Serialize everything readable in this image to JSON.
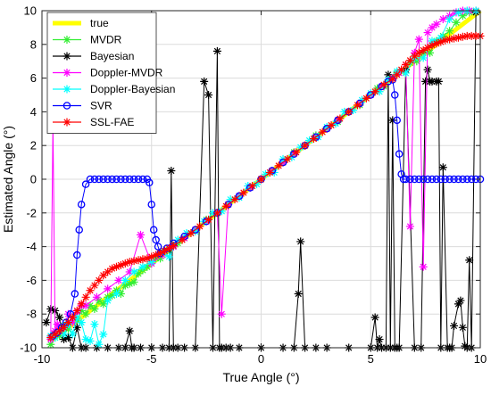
{
  "chart_data": {
    "type": "line",
    "xlabel": "True Angle (°)",
    "ylabel": "Estimated Angle (°)",
    "xlim": [
      -10,
      10
    ],
    "ylim": [
      -10,
      10
    ],
    "xticks": [
      -10,
      -5,
      0,
      5,
      10
    ],
    "yticks": [
      -10,
      -8,
      -6,
      -4,
      -2,
      0,
      2,
      4,
      6,
      8,
      10
    ],
    "xtick_labels": [
      "-10",
      "-5",
      "0",
      "5",
      "10"
    ],
    "ytick_labels": [
      "-10",
      "-8",
      "-6",
      "-4",
      "-2",
      "0",
      "2",
      "4",
      "6",
      "8",
      "10"
    ],
    "grid": true,
    "legend_position": "top-left",
    "series": [
      {
        "name": "true",
        "color": "#ffff00",
        "marker": "none",
        "x": [
          -9.5,
          10
        ],
        "y": [
          -9.5,
          10
        ]
      },
      {
        "name": "MVDR",
        "color": "#33ee33",
        "marker": "asterisk",
        "x": [
          -9.6,
          -9.4,
          -9.2,
          -9.0,
          -8.8,
          -8.6,
          -8.4,
          -8.2,
          -8.0,
          -7.8,
          -7.6,
          -7.4,
          -7.2,
          -7.0,
          -6.8,
          -6.6,
          -6.4,
          -6.2,
          -6.0,
          -5.8,
          -5.6,
          -5.4,
          -5.2,
          -5.0,
          -4.8,
          -4.6,
          -4.4,
          -4.2,
          -4.0,
          -3.8,
          -3.5,
          -3.0,
          -2.5,
          -2.0,
          -1.5,
          -1.0,
          -0.5,
          0.0,
          0.5,
          1.0,
          1.5,
          2.0,
          2.5,
          3.0,
          3.5,
          4.0,
          4.5,
          5.0,
          5.3,
          5.6,
          5.9,
          6.2,
          6.5,
          6.8,
          7.1,
          7.4,
          7.7,
          8.0,
          8.3,
          8.6,
          8.9,
          9.2,
          9.5,
          9.8
        ],
        "y": [
          -9.8,
          -9.4,
          -9.3,
          -8.7,
          -8.9,
          -8.2,
          -8.4,
          -7.8,
          -8.0,
          -7.5,
          -7.7,
          -7.2,
          -7.4,
          -7.0,
          -6.9,
          -6.6,
          -6.8,
          -6.3,
          -6.2,
          -6.1,
          -5.6,
          -5.4,
          -5.2,
          -5.0,
          -4.7,
          -4.7,
          -4.3,
          -4.2,
          -4.0,
          -3.8,
          -3.5,
          -3.0,
          -2.4,
          -2.0,
          -1.5,
          -1.0,
          -0.5,
          0.0,
          0.5,
          1.0,
          1.6,
          2.0,
          2.6,
          3.0,
          3.4,
          4.0,
          4.4,
          5.0,
          5.4,
          5.5,
          6.0,
          6.3,
          6.4,
          6.9,
          7.0,
          7.5,
          7.5,
          8.2,
          8.5,
          8.8,
          9.3,
          9.7,
          9.9,
          10.0
        ]
      },
      {
        "name": "Bayesian",
        "color": "#000000",
        "marker": "asterisk",
        "x": [
          -9.8,
          -9.6,
          -9.4,
          -9.2,
          -9.0,
          -8.8,
          -8.6,
          -8.4,
          -8.2,
          -8.0,
          -7.5,
          -7.0,
          -6.5,
          -6.2,
          -6.0,
          -5.9,
          -5.8,
          -5.5,
          -5.0,
          -4.5,
          -4.2,
          -4.1,
          -4.0,
          -3.8,
          -3.5,
          -3.0,
          -2.6,
          -2.4,
          -2.2,
          -2.0,
          -1.9,
          -1.8,
          -1.6,
          -1.4,
          -1.0,
          0.0,
          1.0,
          1.5,
          1.7,
          1.8,
          2.0,
          2.5,
          3.0,
          4.0,
          5.0,
          5.2,
          5.3,
          5.4,
          5.5,
          5.7,
          5.8,
          5.9,
          6.0,
          6.1,
          6.2,
          6.3,
          6.6,
          7.0,
          7.3,
          7.5,
          7.6,
          7.7,
          7.8,
          8.0,
          8.1,
          8.2,
          8.3,
          8.5,
          8.6,
          8.7,
          8.8,
          9.0,
          9.1,
          9.2,
          9.3,
          9.4,
          9.5,
          9.6,
          9.8
        ],
        "y": [
          -8.5,
          -7.7,
          -7.8,
          -8.2,
          -9.5,
          -9.4,
          -10.0,
          -8.8,
          -10.0,
          -10.0,
          -10.0,
          -10.0,
          -10.0,
          -10.0,
          -9.0,
          -10.0,
          -10.0,
          -10.0,
          -10.0,
          -10.0,
          -10.0,
          0.5,
          -10.0,
          -10.0,
          -10.0,
          -10.0,
          5.8,
          5.0,
          -10.0,
          7.6,
          -10.0,
          -10.0,
          -10.0,
          -10.0,
          -10.0,
          -10.0,
          -10.0,
          -10.0,
          -6.8,
          -3.7,
          -10.0,
          -10.0,
          -10.0,
          -10.0,
          -10.0,
          -8.2,
          -10.0,
          -9.5,
          -10.0,
          -10.0,
          6.2,
          -10.0,
          3.5,
          -10.0,
          -10.0,
          -10.0,
          6.5,
          -10.0,
          -10.0,
          5.8,
          6.5,
          5.8,
          5.8,
          5.8,
          5.8,
          -10.0,
          0.7,
          -10.0,
          -10.0,
          -10.0,
          -8.7,
          -7.4,
          -7.2,
          -8.8,
          -9.9,
          -10.0,
          -4.8,
          -10.0,
          9.9
        ]
      },
      {
        "name": "Doppler-MVDR",
        "color": "#ff00ff",
        "marker": "asterisk",
        "x": [
          -9.6,
          -9.5,
          -9.4,
          -9.3,
          -9.2,
          -9.0,
          -8.8,
          -8.6,
          -8.4,
          -8.2,
          -8.0,
          -7.5,
          -7.0,
          -6.5,
          -6.0,
          -5.5,
          -5.0,
          -4.5,
          -4.0,
          -3.5,
          -3.0,
          -2.5,
          -2.0,
          -1.8,
          -1.5,
          -1.0,
          -0.5,
          0.0,
          0.5,
          1.0,
          1.5,
          2.0,
          2.5,
          3.0,
          3.5,
          4.0,
          4.5,
          5.0,
          5.5,
          6.0,
          6.3,
          6.6,
          6.8,
          7.0,
          7.2,
          7.4,
          7.6,
          7.8,
          8.0,
          8.3,
          8.6,
          8.9,
          9.2,
          9.5,
          9.8
        ],
        "y": [
          -9.5,
          3.3,
          -9.0,
          -8.6,
          -9.0,
          -8.8,
          -8.0,
          -8.5,
          -7.9,
          -7.5,
          -7.5,
          -7.0,
          -6.5,
          -6.0,
          -5.5,
          -3.3,
          -5.0,
          -4.5,
          -4.0,
          -3.5,
          -3.0,
          -2.5,
          -2.0,
          -8.0,
          -1.5,
          -1.0,
          -0.5,
          0.0,
          0.5,
          1.0,
          1.5,
          2.0,
          2.5,
          3.0,
          3.5,
          4.0,
          4.5,
          5.0,
          5.5,
          6.0,
          6.3,
          6.8,
          -2.8,
          7.5,
          8.3,
          -5.2,
          8.7,
          9.0,
          9.2,
          9.5,
          9.7,
          9.9,
          10.0,
          10.0,
          10.0
        ]
      },
      {
        "name": "Doppler-Bayesian",
        "color": "#00ffff",
        "marker": "asterisk",
        "x": [
          -9.6,
          -9.4,
          -9.2,
          -9.0,
          -8.8,
          -8.6,
          -8.4,
          -8.2,
          -8.0,
          -7.8,
          -7.6,
          -7.4,
          -7.2,
          -7.0,
          -6.6,
          -6.2,
          -5.8,
          -5.4,
          -5.0,
          -4.6,
          -4.2,
          -3.8,
          -3.4,
          -3.0,
          -2.6,
          -2.2,
          -1.8,
          -1.4,
          -1.0,
          -0.6,
          -0.2,
          0.2,
          0.6,
          1.0,
          1.4,
          1.8,
          2.2,
          2.6,
          3.0,
          3.4,
          3.8,
          4.2,
          4.6,
          5.0,
          5.4,
          5.8,
          6.2,
          6.6,
          7.0,
          7.4,
          7.8,
          8.2,
          8.6,
          9.0,
          9.4,
          9.8
        ],
        "y": [
          -9.3,
          -9.4,
          -9.0,
          -9.2,
          -8.6,
          -9.2,
          -8.2,
          -8.5,
          -9.5,
          -9.6,
          -8.6,
          -9.8,
          -9.2,
          -7.2,
          -6.8,
          -6.0,
          -5.5,
          -5.2,
          -4.9,
          -4.4,
          -4.6,
          -3.6,
          -3.2,
          -3.1,
          -2.5,
          -2.0,
          -1.9,
          -1.2,
          -1.1,
          -0.4,
          -0.3,
          0.3,
          0.4,
          1.2,
          1.3,
          1.9,
          2.3,
          2.5,
          3.1,
          3.3,
          4.0,
          4.1,
          4.7,
          5.1,
          5.2,
          5.9,
          6.4,
          6.3,
          7.2,
          7.2,
          8.2,
          8.4,
          9.5,
          9.9,
          10.0,
          10.0
        ]
      },
      {
        "name": "SVR",
        "color": "#0000ff",
        "marker": "circle",
        "x": [
          -9.5,
          -9.3,
          -9.1,
          -8.9,
          -8.7,
          -8.5,
          -8.4,
          -8.3,
          -8.2,
          -8.0,
          -7.8,
          -7.6,
          -7.4,
          -7.2,
          -7.0,
          -6.8,
          -6.6,
          -6.4,
          -6.2,
          -6.0,
          -5.8,
          -5.6,
          -5.4,
          -5.2,
          -5.1,
          -5.0,
          -4.9,
          -4.8,
          -4.7,
          -4.6,
          -4.3,
          -4.0,
          -3.5,
          -3.0,
          -2.5,
          -2.0,
          -1.5,
          -1.0,
          -0.5,
          0.0,
          0.5,
          1.0,
          1.5,
          2.0,
          2.5,
          3.0,
          3.5,
          4.0,
          4.5,
          5.0,
          5.5,
          5.8,
          6.0,
          6.1,
          6.2,
          6.3,
          6.4,
          6.5,
          6.6,
          6.8,
          7.0,
          7.2,
          7.4,
          7.6,
          7.8,
          8.0,
          8.2,
          8.4,
          8.6,
          8.8,
          9.0,
          9.2,
          9.4,
          9.6,
          9.8,
          10.0
        ],
        "y": [
          -9.3,
          -9.1,
          -8.8,
          -8.5,
          -8.0,
          -6.8,
          -4.5,
          -3.0,
          -1.5,
          -0.3,
          0.0,
          0.0,
          0.0,
          0.0,
          0.0,
          0.0,
          0.0,
          0.0,
          0.0,
          0.0,
          0.0,
          0.0,
          0.0,
          0.0,
          -0.2,
          -1.5,
          -3.0,
          -3.6,
          -4.0,
          -4.4,
          -4.1,
          -3.8,
          -3.4,
          -3.0,
          -2.5,
          -2.0,
          -1.5,
          -1.0,
          -0.5,
          0.0,
          0.5,
          1.0,
          1.5,
          2.0,
          2.5,
          3.0,
          3.5,
          4.0,
          4.5,
          5.0,
          5.5,
          5.8,
          5.9,
          5.0,
          3.5,
          1.5,
          0.3,
          0.0,
          0.0,
          0.0,
          0.0,
          0.0,
          0.0,
          0.0,
          0.0,
          0.0,
          0.0,
          0.0,
          0.0,
          0.0,
          0.0,
          0.0,
          0.0,
          0.0,
          0.0,
          0.0
        ]
      },
      {
        "name": "SSL-FAE",
        "color": "#ff0000",
        "marker": "asterisk",
        "x": [
          -9.6,
          -9.4,
          -9.2,
          -9.0,
          -8.8,
          -8.6,
          -8.4,
          -8.2,
          -8.0,
          -7.8,
          -7.6,
          -7.4,
          -7.2,
          -7.0,
          -6.8,
          -6.6,
          -6.4,
          -6.2,
          -6.0,
          -5.8,
          -5.6,
          -5.4,
          -5.2,
          -5.0,
          -4.8,
          -4.6,
          -4.4,
          -4.2,
          -4.0,
          -3.6,
          -3.2,
          -2.8,
          -2.4,
          -2.0,
          -1.6,
          -1.2,
          -0.8,
          -0.4,
          0.0,
          0.4,
          0.8,
          1.2,
          1.6,
          2.0,
          2.4,
          2.8,
          3.2,
          3.6,
          4.0,
          4.4,
          4.8,
          5.2,
          5.6,
          6.0,
          6.2,
          6.4,
          6.6,
          6.8,
          7.0,
          7.2,
          7.4,
          7.6,
          7.8,
          8.0,
          8.2,
          8.4,
          8.6,
          8.8,
          9.0,
          9.2,
          9.4,
          9.6,
          9.8,
          10.0
        ],
        "y": [
          -9.4,
          -9.2,
          -9.0,
          -8.8,
          -8.5,
          -8.2,
          -7.8,
          -7.4,
          -7.0,
          -6.6,
          -6.3,
          -6.0,
          -5.7,
          -5.5,
          -5.3,
          -5.2,
          -5.1,
          -5.0,
          -4.9,
          -4.85,
          -4.8,
          -4.75,
          -4.7,
          -4.6,
          -4.5,
          -4.4,
          -4.25,
          -4.1,
          -3.95,
          -3.6,
          -3.2,
          -2.8,
          -2.4,
          -2.0,
          -1.6,
          -1.2,
          -0.8,
          -0.4,
          0.0,
          0.4,
          0.8,
          1.2,
          1.6,
          2.0,
          2.4,
          2.8,
          3.2,
          3.6,
          4.0,
          4.4,
          4.8,
          5.2,
          5.6,
          5.95,
          6.2,
          6.5,
          6.8,
          7.05,
          7.3,
          7.5,
          7.65,
          7.8,
          7.95,
          8.05,
          8.15,
          8.25,
          8.3,
          8.35,
          8.4,
          8.45,
          8.5,
          8.5,
          8.5,
          8.5
        ]
      }
    ]
  }
}
